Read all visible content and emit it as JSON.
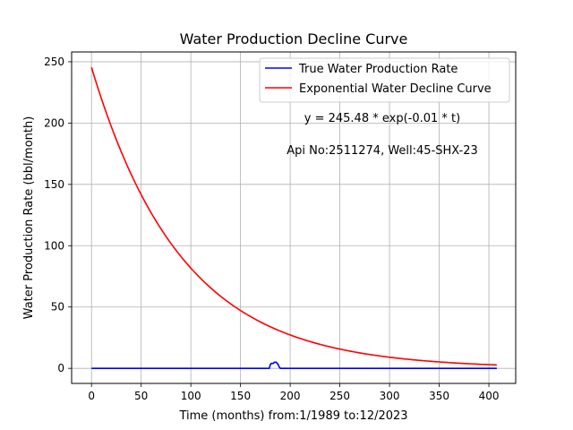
{
  "chart_data": {
    "type": "line",
    "title": "Water Production Decline Curve",
    "xlabel": "Time (months) from:1/1989 to:12/2023",
    "ylabel": "Water Production Rate (bbl/month)",
    "xlim": [
      -20,
      427
    ],
    "ylim": [
      -12.3,
      258
    ],
    "xticks": [
      0,
      50,
      100,
      150,
      200,
      250,
      300,
      350,
      400
    ],
    "yticks": [
      0,
      50,
      100,
      150,
      200,
      250
    ],
    "grid": true,
    "legend_position": "top-right",
    "annotations": {
      "equation": "y = 245.48 * exp(-0.01 * t)",
      "well": "Api No:2511274, Well:45-SHX-23"
    },
    "series": [
      {
        "name": "True Water Production Rate",
        "color": "#0000ff",
        "x": [
          0,
          179,
          180,
          181,
          182,
          183,
          184,
          185,
          186,
          187,
          188,
          189,
          190,
          191,
          408
        ],
        "y": [
          0,
          0,
          3,
          4,
          4,
          4,
          5,
          5,
          5,
          4,
          3,
          1,
          0,
          0,
          0
        ]
      },
      {
        "name": "Exponential Water Decline Curve",
        "color": "#ff0000",
        "fit": {
          "a": 245.48,
          "b": 0.011,
          "t_start": 0,
          "t_end": 408
        }
      }
    ]
  }
}
